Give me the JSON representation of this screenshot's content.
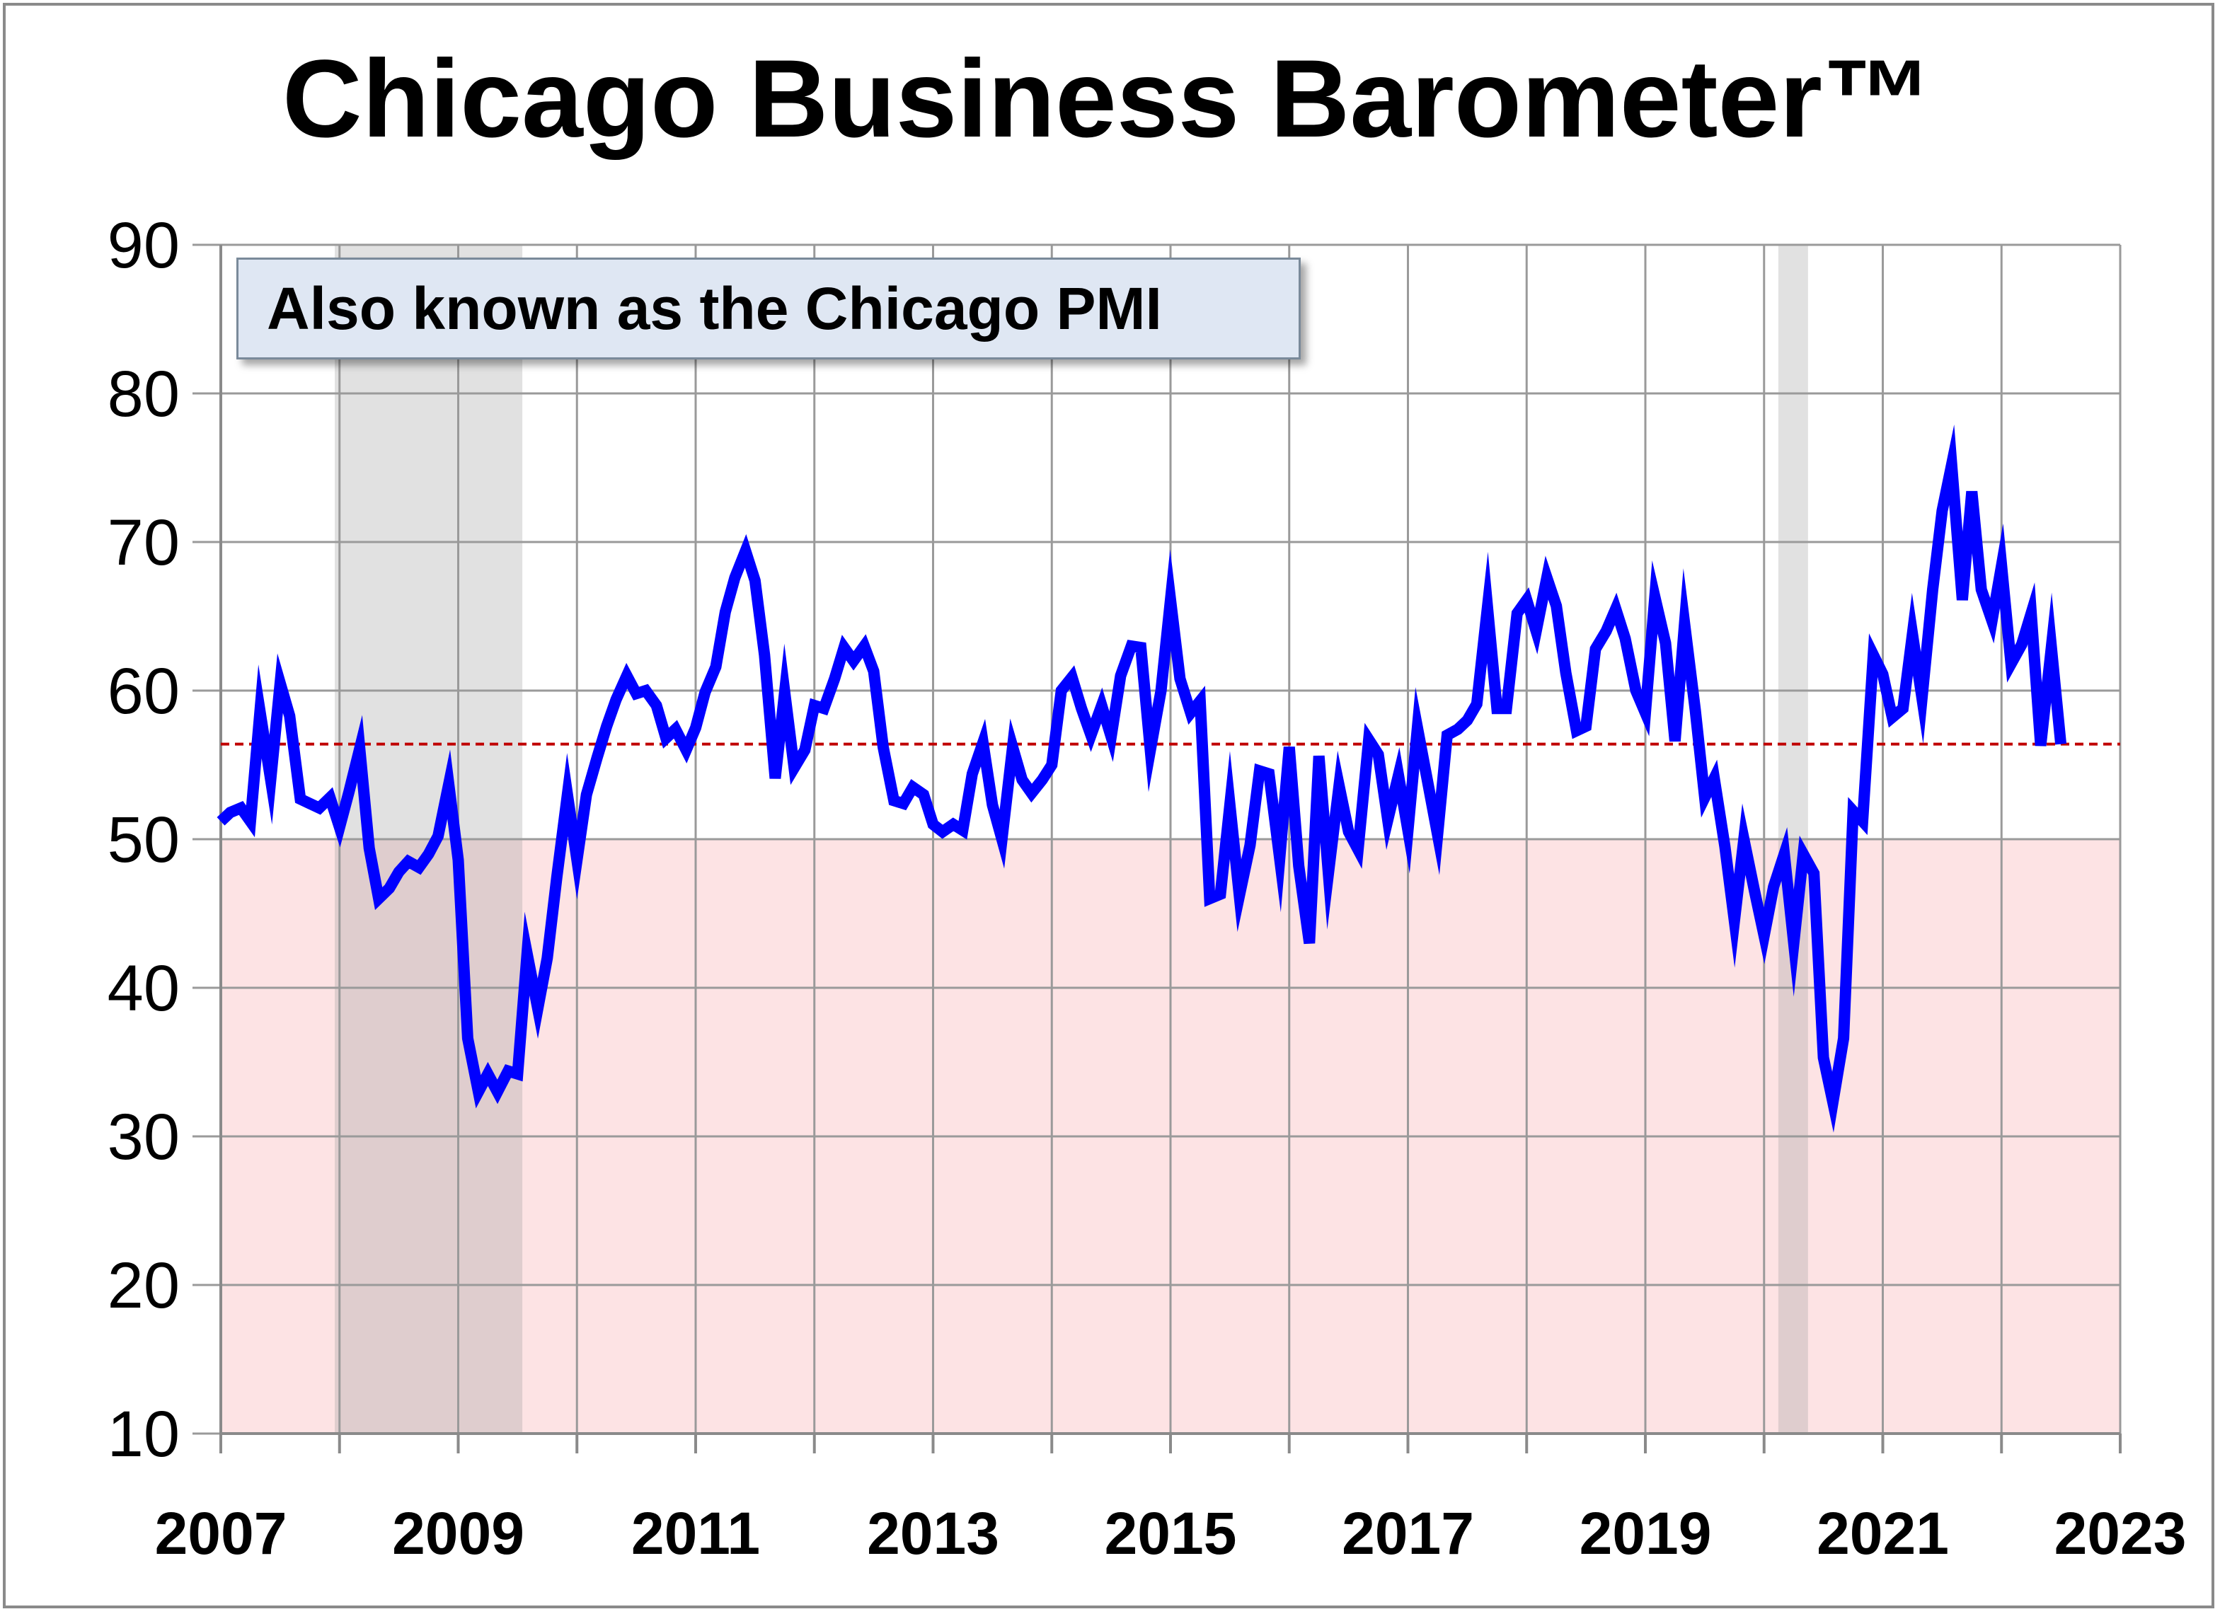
{
  "chart_data": {
    "type": "line",
    "title": "Chicago Business Barometer™",
    "annotation": "Also known as the Chicago PMI",
    "xlabel": "",
    "ylabel": "",
    "xlim": [
      2007,
      2023
    ],
    "ylim": [
      10,
      90
    ],
    "x_ticks": [
      "2007",
      "2009",
      "2011",
      "2013",
      "2015",
      "2017",
      "2019",
      "2021",
      "2023"
    ],
    "y_ticks": [
      "10",
      "20",
      "30",
      "40",
      "50",
      "60",
      "70",
      "80",
      "90"
    ],
    "grid": true,
    "legend": "none",
    "reference_line": {
      "value": 56.4,
      "style": "dashed",
      "color": "#c00000"
    },
    "contraction_zone": {
      "from": 10,
      "to": 50,
      "color": "#fde3e4"
    },
    "recession_shading": [
      {
        "start": 2007.96,
        "end": 2009.54
      },
      {
        "start": 2020.12,
        "end": 2020.37
      }
    ],
    "series": [
      {
        "color": "#0000ff",
        "points": [
          [
            2007.0,
            51.2
          ],
          [
            2007.08,
            51.8
          ],
          [
            2007.17,
            52.1
          ],
          [
            2007.25,
            51.2
          ],
          [
            2007.33,
            58.6
          ],
          [
            2007.42,
            54.0
          ],
          [
            2007.5,
            60.5
          ],
          [
            2007.58,
            58.3
          ],
          [
            2007.67,
            52.7
          ],
          [
            2007.75,
            52.4
          ],
          [
            2007.83,
            52.1
          ],
          [
            2007.92,
            52.8
          ],
          [
            2008.0,
            50.8
          ],
          [
            2008.08,
            53.2
          ],
          [
            2008.17,
            56.1
          ],
          [
            2008.25,
            49.4
          ],
          [
            2008.33,
            46.0
          ],
          [
            2008.42,
            46.7
          ],
          [
            2008.5,
            47.8
          ],
          [
            2008.58,
            48.5
          ],
          [
            2008.67,
            48.1
          ],
          [
            2008.75,
            49.0
          ],
          [
            2008.83,
            50.2
          ],
          [
            2008.92,
            53.7
          ],
          [
            2009.0,
            48.6
          ],
          [
            2009.08,
            36.6
          ],
          [
            2009.17,
            33.0
          ],
          [
            2009.25,
            34.2
          ],
          [
            2009.33,
            33.0
          ],
          [
            2009.42,
            34.4
          ],
          [
            2009.5,
            34.2
          ],
          [
            2009.58,
            42.3
          ],
          [
            2009.67,
            38.6
          ],
          [
            2009.75,
            42.0
          ],
          [
            2009.83,
            47.4
          ],
          [
            2009.92,
            53.0
          ],
          [
            2010.0,
            48.6
          ],
          [
            2010.08,
            53.0
          ],
          [
            2010.17,
            55.5
          ],
          [
            2010.25,
            57.6
          ],
          [
            2010.33,
            59.4
          ],
          [
            2010.42,
            61.0
          ],
          [
            2010.5,
            59.8
          ],
          [
            2010.58,
            60.0
          ],
          [
            2010.67,
            59.0
          ],
          [
            2010.75,
            56.8
          ],
          [
            2010.83,
            57.4
          ],
          [
            2010.92,
            56.0
          ],
          [
            2011.0,
            57.5
          ],
          [
            2011.08,
            59.9
          ],
          [
            2011.17,
            61.6
          ],
          [
            2011.25,
            65.3
          ],
          [
            2011.33,
            67.6
          ],
          [
            2011.42,
            69.4
          ],
          [
            2011.5,
            67.4
          ],
          [
            2011.58,
            62.4
          ],
          [
            2011.67,
            54.1
          ],
          [
            2011.75,
            59.9
          ],
          [
            2011.83,
            54.8
          ],
          [
            2011.92,
            56.0
          ],
          [
            2012.0,
            59.0
          ],
          [
            2012.08,
            58.8
          ],
          [
            2012.17,
            60.8
          ],
          [
            2012.25,
            62.9
          ],
          [
            2012.33,
            62.0
          ],
          [
            2012.42,
            63.0
          ],
          [
            2012.5,
            61.3
          ],
          [
            2012.58,
            56.2
          ],
          [
            2012.67,
            52.6
          ],
          [
            2012.75,
            52.4
          ],
          [
            2012.83,
            53.5
          ],
          [
            2012.92,
            53.0
          ],
          [
            2013.0,
            51.0
          ],
          [
            2013.08,
            50.5
          ],
          [
            2013.17,
            51.0
          ],
          [
            2013.25,
            50.6
          ],
          [
            2013.33,
            54.4
          ],
          [
            2013.42,
            56.5
          ],
          [
            2013.5,
            52.3
          ],
          [
            2013.58,
            50.0
          ],
          [
            2013.67,
            56.2
          ],
          [
            2013.75,
            54.0
          ],
          [
            2013.83,
            53.1
          ],
          [
            2013.92,
            54.0
          ],
          [
            2014.0,
            55.0
          ],
          [
            2014.08,
            60.0
          ],
          [
            2014.17,
            60.9
          ],
          [
            2014.25,
            58.8
          ],
          [
            2014.33,
            57.0
          ],
          [
            2014.42,
            59.0
          ],
          [
            2014.5,
            56.9
          ],
          [
            2014.58,
            61.0
          ],
          [
            2014.67,
            63.0
          ],
          [
            2014.75,
            62.9
          ],
          [
            2014.83,
            56.0
          ],
          [
            2014.92,
            60.0
          ],
          [
            2015.0,
            66.1
          ],
          [
            2015.08,
            60.8
          ],
          [
            2015.17,
            58.5
          ],
          [
            2015.25,
            59.3
          ],
          [
            2015.33,
            46.0
          ],
          [
            2015.42,
            46.3
          ],
          [
            2015.5,
            52.3
          ],
          [
            2015.58,
            46.2
          ],
          [
            2015.67,
            49.6
          ],
          [
            2015.75,
            54.6
          ],
          [
            2015.83,
            54.4
          ],
          [
            2015.92,
            48.7
          ],
          [
            2016.0,
            56.2
          ],
          [
            2016.08,
            48.2
          ],
          [
            2016.17,
            43.0
          ],
          [
            2016.25,
            55.6
          ],
          [
            2016.33,
            47.7
          ],
          [
            2016.42,
            53.6
          ],
          [
            2016.5,
            50.5
          ],
          [
            2016.58,
            49.3
          ],
          [
            2016.67,
            56.7
          ],
          [
            2016.75,
            55.7
          ],
          [
            2016.83,
            51.3
          ],
          [
            2016.92,
            54.3
          ],
          [
            2017.0,
            50.6
          ],
          [
            2017.08,
            57.5
          ],
          [
            2017.17,
            53.7
          ],
          [
            2017.25,
            50.3
          ],
          [
            2017.33,
            57.0
          ],
          [
            2017.42,
            57.4
          ],
          [
            2017.5,
            58.0
          ],
          [
            2017.58,
            59.1
          ],
          [
            2017.67,
            65.6
          ],
          [
            2017.75,
            58.8
          ],
          [
            2017.83,
            58.8
          ],
          [
            2017.92,
            65.2
          ],
          [
            2018.0,
            66.1
          ],
          [
            2018.08,
            64.0
          ],
          [
            2018.17,
            67.6
          ],
          [
            2018.25,
            65.7
          ],
          [
            2018.33,
            61.2
          ],
          [
            2018.42,
            57.3
          ],
          [
            2018.5,
            57.6
          ],
          [
            2018.58,
            62.8
          ],
          [
            2018.67,
            64.0
          ],
          [
            2018.75,
            65.5
          ],
          [
            2018.83,
            63.5
          ],
          [
            2018.92,
            60.0
          ],
          [
            2019.0,
            58.5
          ],
          [
            2019.08,
            66.3
          ],
          [
            2019.17,
            63.2
          ],
          [
            2019.25,
            56.6
          ],
          [
            2019.33,
            64.5
          ],
          [
            2019.42,
            58.7
          ],
          [
            2019.5,
            52.8
          ],
          [
            2019.58,
            54.1
          ],
          [
            2019.67,
            49.5
          ],
          [
            2019.75,
            44.5
          ],
          [
            2019.83,
            50.0
          ],
          [
            2019.92,
            46.5
          ],
          [
            2020.0,
            43.5
          ],
          [
            2020.08,
            46.8
          ],
          [
            2020.17,
            49.0
          ],
          [
            2020.25,
            43.0
          ],
          [
            2020.33,
            49.0
          ],
          [
            2020.42,
            47.7
          ],
          [
            2020.5,
            35.3
          ],
          [
            2020.58,
            32.3
          ],
          [
            2020.67,
            36.6
          ],
          [
            2020.75,
            51.9
          ],
          [
            2020.83,
            51.2
          ],
          [
            2020.92,
            62.4
          ],
          [
            2021.0,
            61.1
          ],
          [
            2021.08,
            58.2
          ],
          [
            2021.17,
            58.8
          ],
          [
            2021.25,
            63.8
          ],
          [
            2021.33,
            59.5
          ],
          [
            2021.42,
            66.8
          ],
          [
            2021.5,
            72.1
          ],
          [
            2021.58,
            75.2
          ],
          [
            2021.67,
            66.1
          ],
          [
            2021.75,
            73.4
          ],
          [
            2021.83,
            66.8
          ],
          [
            2021.92,
            64.7
          ],
          [
            2022.0,
            68.4
          ],
          [
            2022.08,
            61.8
          ],
          [
            2022.17,
            63.1
          ],
          [
            2022.25,
            65.2
          ],
          [
            2022.33,
            56.3
          ],
          [
            2022.42,
            62.9
          ],
          [
            2022.5,
            56.4
          ]
        ]
      }
    ]
  }
}
